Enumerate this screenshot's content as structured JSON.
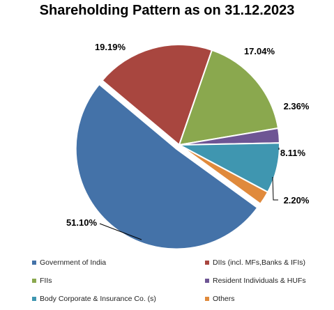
{
  "chart_data": {
    "type": "pie",
    "title": "Shareholding Pattern as on 31.12.2023",
    "slices": [
      {
        "name": "Government of India",
        "value": 51.1,
        "label": "51.10%",
        "color": "#4472A8"
      },
      {
        "name": "DIIs (incl. MFs,Banks & IFIs)",
        "value": 19.19,
        "label": "19.19%",
        "color": "#A8463F"
      },
      {
        "name": "FIIs",
        "value": 17.04,
        "label": "17.04%",
        "color": "#8AA84E"
      },
      {
        "name": "Resident Individuals &  HUFs",
        "value": 2.36,
        "label": "2.36%",
        "color": "#6E5594"
      },
      {
        "name": "Body Corporate & Insurance Co. (s)",
        "value": 8.11,
        "label": "8.11%",
        "color": "#3F96B0"
      },
      {
        "name": "Others",
        "value": 2.2,
        "label": "2.20%",
        "color": "#E08A3C"
      }
    ],
    "legend_position": "bottom"
  }
}
